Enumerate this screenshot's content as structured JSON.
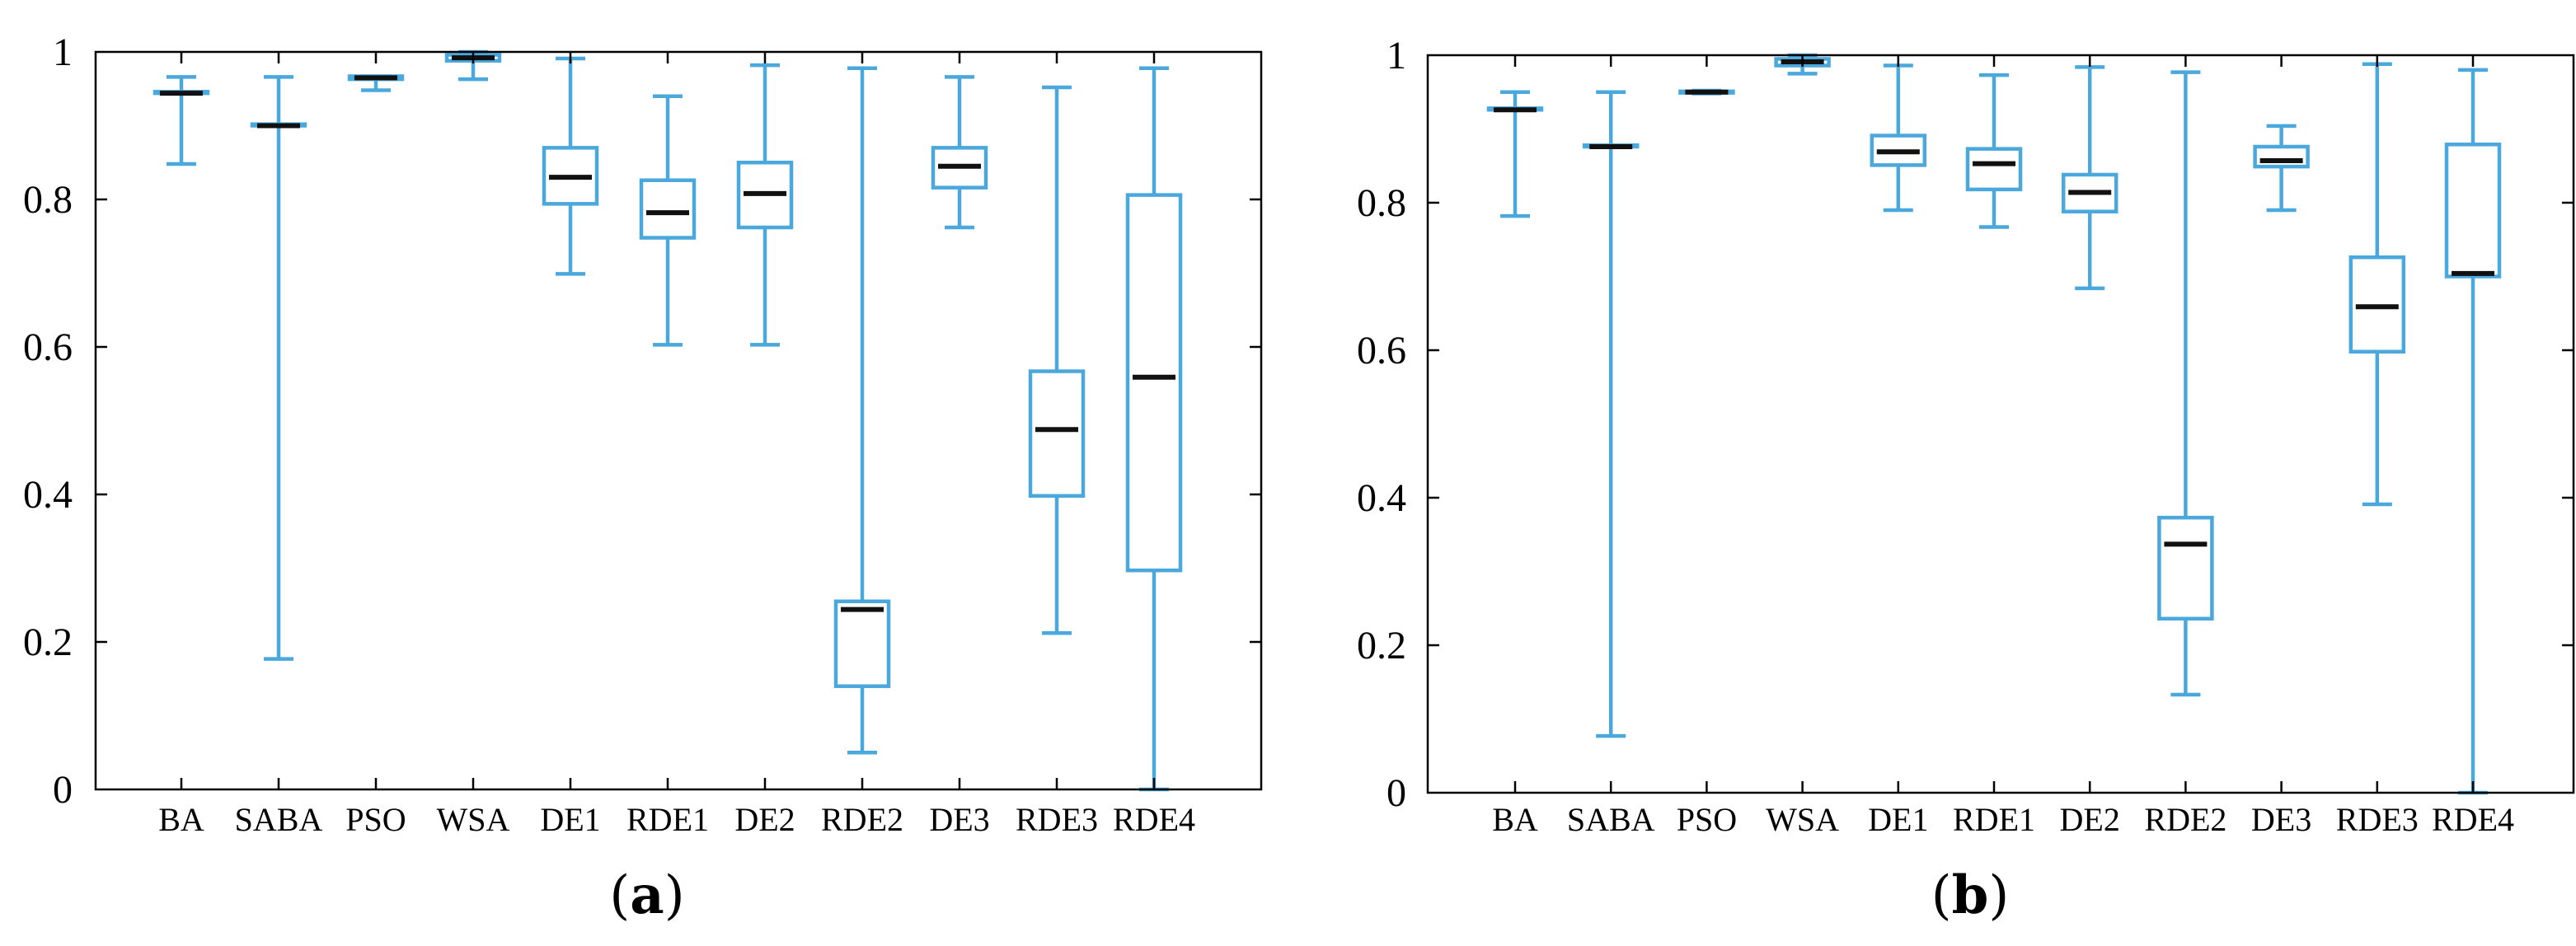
{
  "style": {
    "box_color": "#4ba8dd",
    "median_color": "#111111",
    "axis_color": "#000000"
  },
  "chart_data": [
    {
      "type": "box",
      "panel_label": "a",
      "ylim": [
        0,
        1
      ],
      "yticks": [
        {
          "value": 0,
          "label": "0"
        },
        {
          "value": 0.2,
          "label": "0.2"
        },
        {
          "value": 0.4,
          "label": "0.4"
        },
        {
          "value": 0.6,
          "label": "0.6"
        },
        {
          "value": 0.8,
          "label": "0.8"
        },
        {
          "value": 1,
          "label": "1"
        }
      ],
      "categories": [
        "BA",
        "SABA",
        "PSO",
        "WSA",
        "DE1",
        "RDE1",
        "DE2",
        "RDE2",
        "DE3",
        "RDE3",
        "RDE4"
      ],
      "boxes": [
        {
          "category": "BA",
          "min": 0.848,
          "q1": 0.944,
          "median": 0.944,
          "q3": 0.946,
          "max": 0.966
        },
        {
          "category": "SABA",
          "min": 0.177,
          "q1": 0.9,
          "median": 0.9,
          "q3": 0.902,
          "max": 0.966
        },
        {
          "category": "PSO",
          "min": 0.948,
          "q1": 0.963,
          "median": 0.965,
          "q3": 0.967,
          "max": 0.967
        },
        {
          "category": "WSA",
          "min": 0.963,
          "q1": 0.988,
          "median": 0.992,
          "q3": 0.996,
          "max": 1.0
        },
        {
          "category": "DE1",
          "min": 0.699,
          "q1": 0.794,
          "median": 0.83,
          "q3": 0.87,
          "max": 0.991
        },
        {
          "category": "RDE1",
          "min": 0.603,
          "q1": 0.748,
          "median": 0.782,
          "q3": 0.826,
          "max": 0.94
        },
        {
          "category": "DE2",
          "min": 0.603,
          "q1": 0.762,
          "median": 0.808,
          "q3": 0.85,
          "max": 0.982
        },
        {
          "category": "RDE2",
          "min": 0.05,
          "q1": 0.14,
          "median": 0.244,
          "q3": 0.255,
          "max": 0.978
        },
        {
          "category": "DE3",
          "min": 0.762,
          "q1": 0.816,
          "median": 0.845,
          "q3": 0.87,
          "max": 0.966
        },
        {
          "category": "RDE3",
          "min": 0.212,
          "q1": 0.398,
          "median": 0.488,
          "q3": 0.567,
          "max": 0.952
        },
        {
          "category": "RDE4",
          "min": 0.0,
          "q1": 0.297,
          "median": 0.559,
          "q3": 0.806,
          "max": 0.978
        }
      ]
    },
    {
      "type": "box",
      "panel_label": "b",
      "ylim": [
        0,
        1
      ],
      "yticks": [
        {
          "value": 0,
          "label": "0"
        },
        {
          "value": 0.2,
          "label": "0.2"
        },
        {
          "value": 0.4,
          "label": "0.4"
        },
        {
          "value": 0.6,
          "label": "0.6"
        },
        {
          "value": 0.8,
          "label": "0.8"
        },
        {
          "value": 1,
          "label": "1"
        }
      ],
      "categories": [
        "BA",
        "SABA",
        "PSO",
        "WSA",
        "DE1",
        "RDE1",
        "DE2",
        "RDE2",
        "DE3",
        "RDE3",
        "RDE4"
      ],
      "boxes": [
        {
          "category": "BA",
          "min": 0.782,
          "q1": 0.926,
          "median": 0.926,
          "q3": 0.928,
          "max": 0.95
        },
        {
          "category": "SABA",
          "min": 0.077,
          "q1": 0.876,
          "median": 0.876,
          "q3": 0.878,
          "max": 0.95
        },
        {
          "category": "PSO",
          "min": 0.948,
          "q1": 0.949,
          "median": 0.95,
          "q3": 0.951,
          "max": 0.952
        },
        {
          "category": "WSA",
          "min": 0.975,
          "q1": 0.986,
          "median": 0.991,
          "q3": 0.995,
          "max": 1.0
        },
        {
          "category": "DE1",
          "min": 0.79,
          "q1": 0.851,
          "median": 0.869,
          "q3": 0.891,
          "max": 0.986
        },
        {
          "category": "RDE1",
          "min": 0.767,
          "q1": 0.818,
          "median": 0.853,
          "q3": 0.873,
          "max": 0.973
        },
        {
          "category": "DE2",
          "min": 0.684,
          "q1": 0.788,
          "median": 0.814,
          "q3": 0.838,
          "max": 0.984
        },
        {
          "category": "RDE2",
          "min": 0.133,
          "q1": 0.236,
          "median": 0.337,
          "q3": 0.373,
          "max": 0.977
        },
        {
          "category": "DE3",
          "min": 0.79,
          "q1": 0.849,
          "median": 0.857,
          "q3": 0.876,
          "max": 0.904
        },
        {
          "category": "RDE3",
          "min": 0.391,
          "q1": 0.598,
          "median": 0.659,
          "q3": 0.726,
          "max": 0.988
        },
        {
          "category": "RDE4",
          "min": 0.0,
          "q1": 0.7,
          "median": 0.704,
          "q3": 0.879,
          "max": 0.98
        }
      ]
    }
  ]
}
